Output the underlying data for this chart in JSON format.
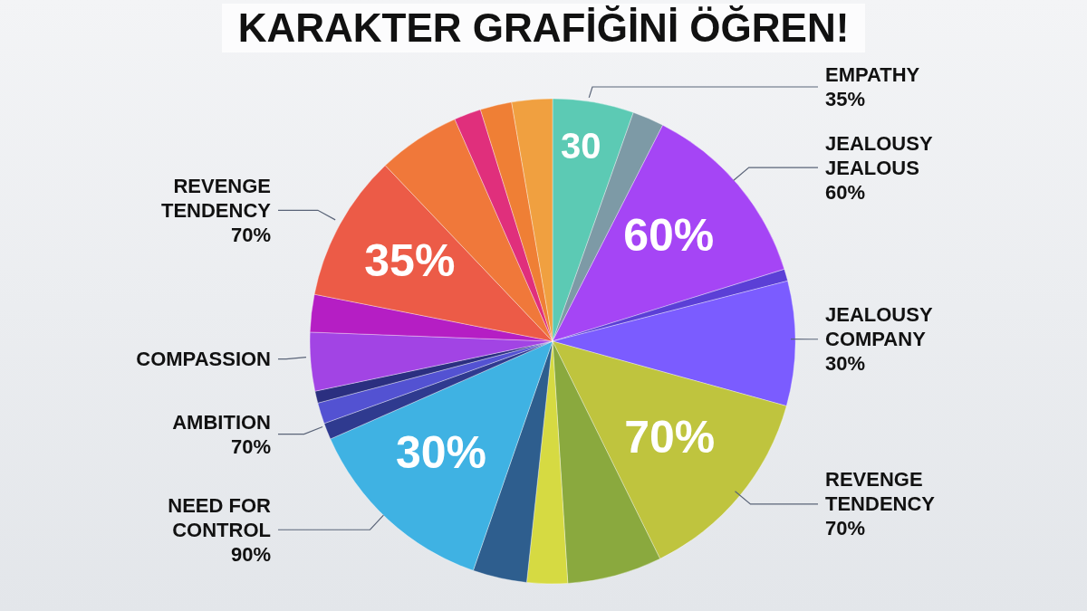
{
  "chart_data": {
    "type": "pie",
    "title": "KARAKTER GRAFİĞİNİ ÖĞREN!",
    "categories": [
      "EMPATHY\n35%",
      null,
      "JEALOUSY\nJEALOUS\n60%",
      null,
      "JEALOUSY\nCOMPANY\n30%",
      "REVENGE\nTENDENCY\n70%",
      null,
      null,
      null,
      "NEED FOR\nCONTROL\n90%",
      "AMBITION\n70%",
      null,
      null,
      "COMPASSION",
      null,
      "REVENGE\nTENDENCY\n70%",
      null,
      null,
      null,
      null
    ],
    "values": [
      5.4,
      2.1,
      12.7,
      0.8,
      8.3,
      13.4,
      6.3,
      2.7,
      3.6,
      13.1,
      1.1,
      1.4,
      0.8,
      3.9,
      2.5,
      9.8,
      5.5,
      1.8,
      2.1,
      2.7
    ],
    "colors": [
      "#5ccab4",
      "#7d9aa6",
      "#a545f5",
      "#5b3fd6",
      "#7b5cff",
      "#bfc43e",
      "#8aa93e",
      "#d6da42",
      "#2e5e8e",
      "#3fb2e3",
      "#2f3a8f",
      "#5352d2",
      "#2b2f80",
      "#a244e4",
      "#b51ec4",
      "#ec5b47",
      "#f0783a",
      "#e02f7c",
      "#ef7f35",
      "#f0a040"
    ],
    "annotations": [
      {
        "text": "30",
        "x": "EMPATHY\n35%"
      },
      {
        "text": "60%",
        "x": "JEALOUSY\nJEALOUS\n60%"
      },
      {
        "text": "70%",
        "x": "REVENGE\nTENDENCY\n70%"
      },
      {
        "text": "30%",
        "x": "NEED FOR\nCONTROL\n90%"
      },
      {
        "text": "35%",
        "x": "REVENGE\nTENDENCY\n70%"
      }
    ]
  }
}
